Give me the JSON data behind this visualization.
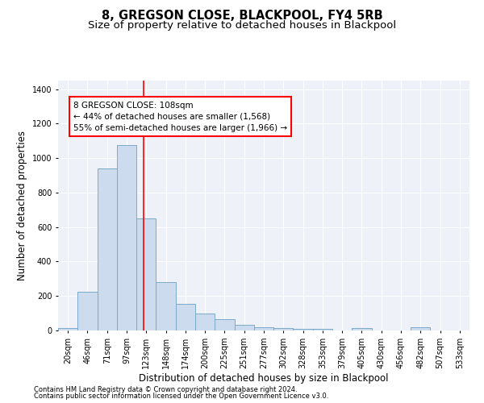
{
  "title": "8, GREGSON CLOSE, BLACKPOOL, FY4 5RB",
  "subtitle": "Size of property relative to detached houses in Blackpool",
  "xlabel": "Distribution of detached houses by size in Blackpool",
  "ylabel": "Number of detached properties",
  "bar_color": "#ccdcee",
  "bar_edge_color": "#7aaaca",
  "axes_bg_color": "#eef2f8",
  "categories": [
    "20sqm",
    "46sqm",
    "71sqm",
    "97sqm",
    "123sqm",
    "148sqm",
    "174sqm",
    "200sqm",
    "225sqm",
    "251sqm",
    "277sqm",
    "302sqm",
    "328sqm",
    "353sqm",
    "379sqm",
    "405sqm",
    "430sqm",
    "456sqm",
    "482sqm",
    "507sqm",
    "533sqm"
  ],
  "values": [
    15,
    225,
    940,
    1075,
    650,
    280,
    155,
    100,
    65,
    32,
    20,
    12,
    10,
    8,
    0,
    12,
    0,
    0,
    20,
    0,
    0
  ],
  "ylim": [
    0,
    1450
  ],
  "yticks": [
    0,
    200,
    400,
    600,
    800,
    1000,
    1200,
    1400
  ],
  "red_line_x": 3.85,
  "annotation_text": "8 GREGSON CLOSE: 108sqm\n← 44% of detached houses are smaller (1,568)\n55% of semi-detached houses are larger (1,966) →",
  "footer_line1": "Contains HM Land Registry data © Crown copyright and database right 2024.",
  "footer_line2": "Contains public sector information licensed under the Open Government Licence v3.0.",
  "title_fontsize": 10.5,
  "subtitle_fontsize": 9.5,
  "tick_fontsize": 7,
  "ylabel_fontsize": 8.5,
  "xlabel_fontsize": 8.5,
  "annotation_fontsize": 7.5,
  "footer_fontsize": 6
}
